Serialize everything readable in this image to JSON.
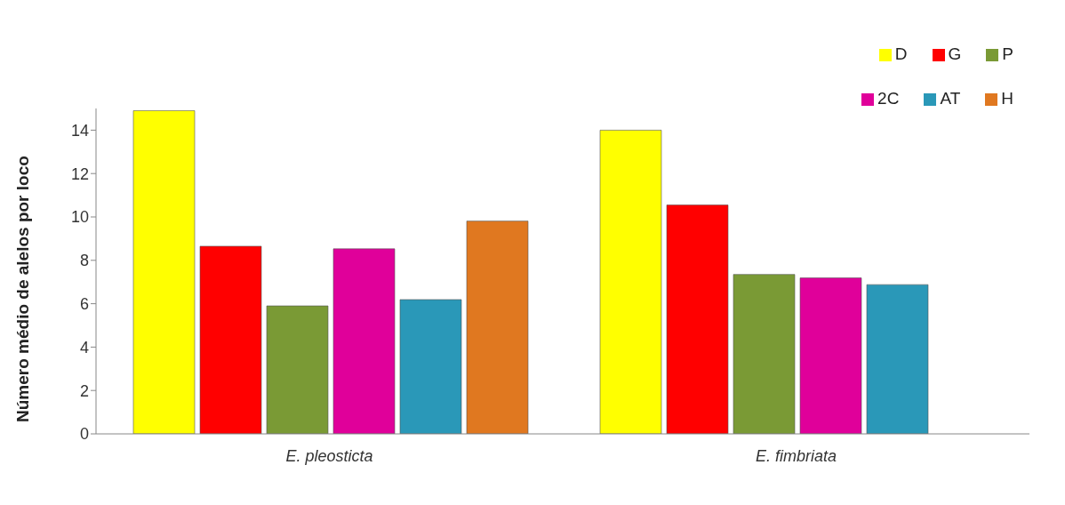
{
  "chart_data": {
    "type": "bar",
    "ylabel": "Número médio de alelos por loco",
    "categories": [
      "E. pleosticta",
      "E. fimbriata"
    ],
    "series": [
      {
        "name": "D",
        "color": "#ffff00",
        "values": [
          14.9,
          14.0
        ]
      },
      {
        "name": "G",
        "color": "#ff0000",
        "values": [
          8.65,
          10.55
        ]
      },
      {
        "name": "P",
        "color": "#7a9a35",
        "values": [
          5.9,
          7.35
        ]
      },
      {
        "name": "2C",
        "color": "#e0009a",
        "values": [
          8.53,
          7.19
        ]
      },
      {
        "name": "AT",
        "color": "#2a98b8",
        "values": [
          6.19,
          6.88
        ]
      },
      {
        "name": "H",
        "color": "#e07820",
        "values": [
          9.81,
          null
        ]
      }
    ],
    "ylim": [
      0,
      15
    ],
    "yticks": [
      0,
      2,
      4,
      6,
      8,
      10,
      12,
      14
    ],
    "grid": false,
    "legend": "top right"
  }
}
